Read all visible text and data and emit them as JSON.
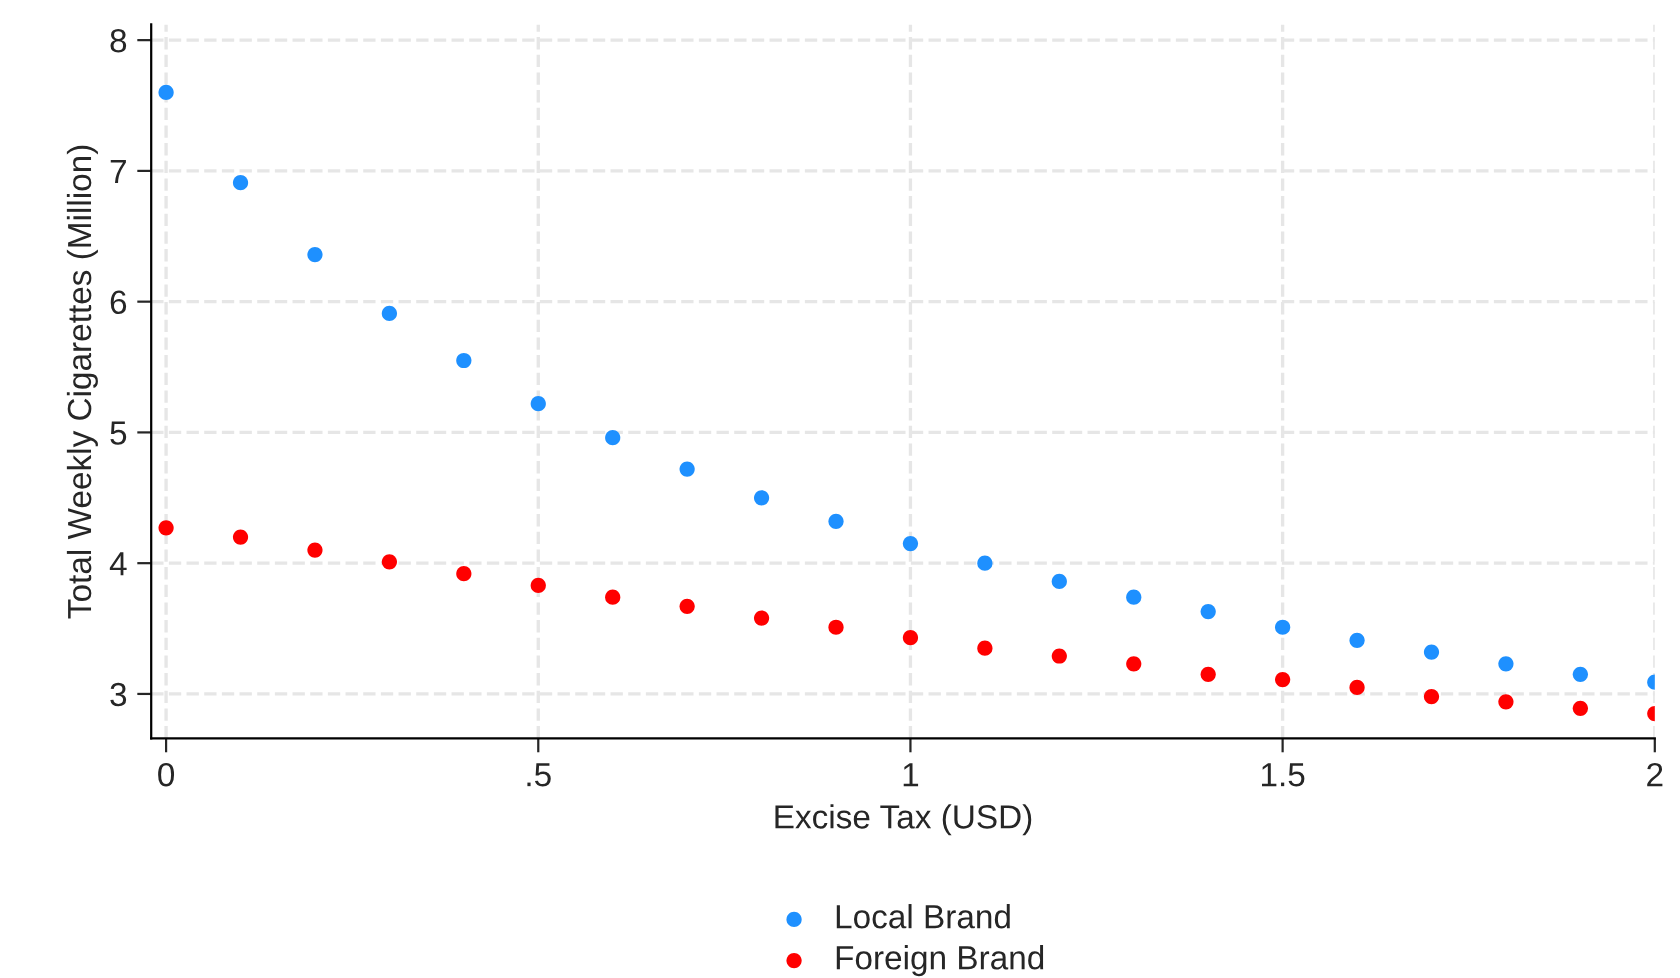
{
  "chart_data": {
    "type": "scatter",
    "xlabel": "Excise Tax (USD)",
    "ylabel": "Total Weekly Cigarettes (Million)",
    "x": [
      0,
      0.1,
      0.2,
      0.3,
      0.4,
      0.5,
      0.6,
      0.7,
      0.8,
      0.9,
      1.0,
      1.1,
      1.2,
      1.3,
      1.4,
      1.5,
      1.6,
      1.7,
      1.8,
      1.9,
      2.0
    ],
    "series": [
      {
        "name": "Local Brand",
        "color": "#1e90ff",
        "values": [
          7.6,
          6.91,
          6.36,
          5.91,
          5.55,
          5.22,
          4.96,
          4.72,
          4.5,
          4.32,
          4.15,
          4.0,
          3.86,
          3.74,
          3.63,
          3.51,
          3.41,
          3.32,
          3.23,
          3.15,
          3.09
        ]
      },
      {
        "name": "Foreign Brand",
        "color": "#ff0000",
        "values": [
          4.27,
          4.2,
          4.1,
          4.01,
          3.92,
          3.83,
          3.74,
          3.67,
          3.58,
          3.51,
          3.43,
          3.35,
          3.29,
          3.23,
          3.15,
          3.11,
          3.05,
          2.98,
          2.94,
          2.89,
          2.85
        ]
      }
    ],
    "xlim": [
      -0.02,
      2.0
    ],
    "xticks": [
      0,
      {
        "value": 0.5,
        "label": ".5"
      },
      1,
      1.5,
      2
    ],
    "ylim": [
      2.66,
      8.12
    ],
    "yticks": [
      3,
      4,
      5,
      6,
      7,
      8
    ],
    "grid": true,
    "legend": "bottom",
    "marker": "circle"
  }
}
